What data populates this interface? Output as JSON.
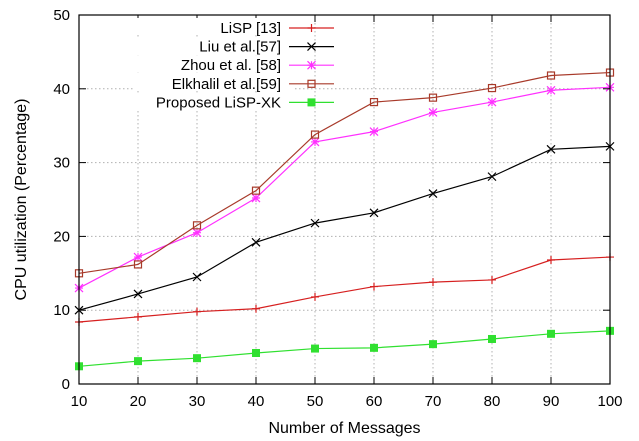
{
  "chart_data": {
    "type": "line",
    "title": "",
    "xlabel": "Number of Messages",
    "ylabel": "CPU utilization (Percentage)",
    "x": [
      10,
      20,
      30,
      40,
      50,
      60,
      70,
      80,
      90,
      100
    ],
    "xlim": [
      10,
      100
    ],
    "ylim": [
      0,
      50
    ],
    "xticks": [
      10,
      20,
      30,
      40,
      50,
      60,
      70,
      80,
      90,
      100
    ],
    "yticks": [
      0,
      10,
      20,
      30,
      40,
      50
    ],
    "grid": true,
    "legend_position": "top-left",
    "series": [
      {
        "name": "LiSP [13]",
        "marker": "plus",
        "color": "#d62020",
        "values": [
          8.4,
          9.1,
          9.8,
          10.2,
          11.8,
          13.2,
          13.8,
          14.1,
          16.8,
          17.2
        ]
      },
      {
        "name": "Liu et al.[57]",
        "marker": "cross",
        "color": "#000000",
        "values": [
          10.0,
          12.2,
          14.5,
          19.2,
          21.8,
          23.2,
          25.8,
          28.1,
          31.8,
          32.2
        ]
      },
      {
        "name": "Zhou et al. [58]",
        "marker": "star",
        "color": "#ff30ff",
        "values": [
          13.0,
          17.2,
          20.5,
          25.2,
          32.8,
          34.2,
          36.8,
          38.2,
          39.8,
          40.2
        ]
      },
      {
        "name": "Elkhalil et al.[59]",
        "marker": "square-open",
        "color": "#a83a2a",
        "values": [
          15.0,
          16.2,
          21.5,
          26.2,
          33.8,
          38.2,
          38.8,
          40.1,
          41.8,
          42.2
        ]
      },
      {
        "name": "Proposed LiSP-XK",
        "marker": "square-filled",
        "color": "#30e030",
        "values": [
          2.4,
          3.1,
          3.5,
          4.2,
          4.8,
          4.9,
          5.4,
          6.1,
          6.8,
          7.2
        ]
      }
    ]
  }
}
